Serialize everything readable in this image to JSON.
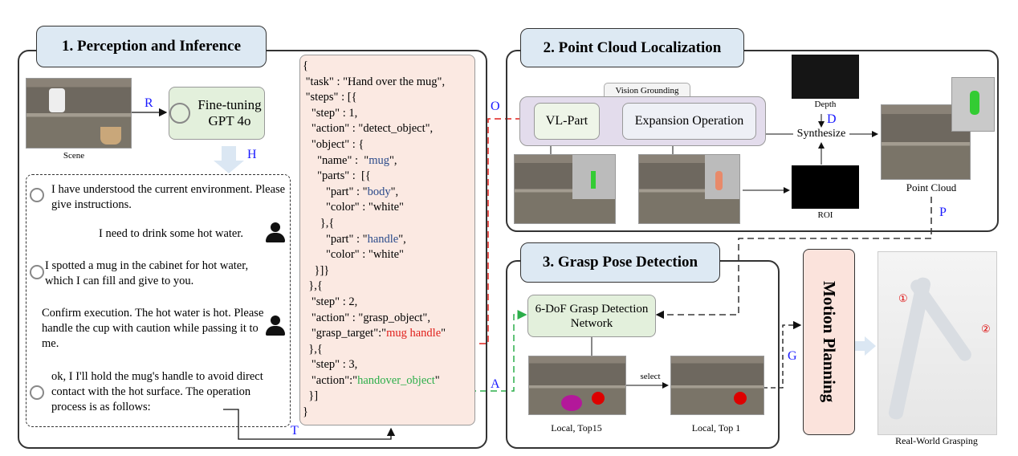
{
  "panel1": {
    "title": "1. Perception and Inference",
    "scene_label": "Scene",
    "r": "R",
    "h": "H",
    "t": "T",
    "model": "Fine-tuning GPT 4o",
    "chat": [
      {
        "role": "assistant",
        "text": "I have understood the current environment. Please give instructions."
      },
      {
        "role": "user",
        "text": "I need to drink some hot water."
      },
      {
        "role": "assistant",
        "text": "I spotted a mug in the cabinet for hot water, which I can fill and give to you."
      },
      {
        "role": "user",
        "text": "Confirm execution. The hot water is hot. Please handle the cup with caution while passing it to me."
      },
      {
        "role": "assistant",
        "text": "ok, I I'll hold the mug's handle to avoid direct contact with the hot surface. The operation process is as follows:"
      }
    ],
    "json_lines": [
      "{",
      " \"task\" : \"Hand over the mug\",",
      " \"steps\" : [{",
      "   \"step\" : 1,",
      "   \"action\" : \"detect_object\",",
      "   \"object\" : {",
      "     \"name\" :  \"",
      "mug",
      "\",",
      "     \"parts\" :  [{",
      "        \"part\" : \"",
      "body",
      "\",",
      "        \"color\" : \"white\"",
      "      },{",
      "        \"part\" : \"",
      "handle",
      "\",",
      "        \"color\" : \"white\"",
      "    }]}",
      "  },{",
      "   \"step\" : 2,",
      "   \"action\" : \"grasp_object\",",
      "   \"grasp_target\":\"",
      "mug handle",
      "\"",
      "  },{",
      "   \"step\" : 3,",
      "   \"action\":\"",
      "handover_object",
      "\"",
      "  }]",
      "}"
    ]
  },
  "panel2": {
    "title": "2. Point Cloud Localization",
    "vision_grounding": "Vision Grounding",
    "vl_part": "VL-Part",
    "expansion": "Expansion Operation",
    "depth": "Depth",
    "roi": "ROI",
    "synthesize": "Synthesize",
    "point_cloud": "Point Cloud",
    "o": "O",
    "d": "D",
    "p": "P"
  },
  "panel3": {
    "title": "3. Grasp Pose Detection",
    "network": "6-DoF Grasp Detection Network",
    "select": "select",
    "top15": "Local, Top15",
    "top1": "Local, Top 1",
    "a": "A",
    "g": "G"
  },
  "motion_planning": "Motion Planning",
  "real_world": "Real-World Grasping",
  "markers": [
    "①",
    "②"
  ],
  "colors": {
    "title_fill": "#dde9f3",
    "json_fill": "#fbe9e2",
    "model_fill": "#e3f0dc",
    "grounding_fill": "#e3dcec",
    "motion_fill": "#fbe3dc",
    "label_blue": "#1a1aff",
    "red": "#e0201c",
    "green": "#2cae4a"
  }
}
